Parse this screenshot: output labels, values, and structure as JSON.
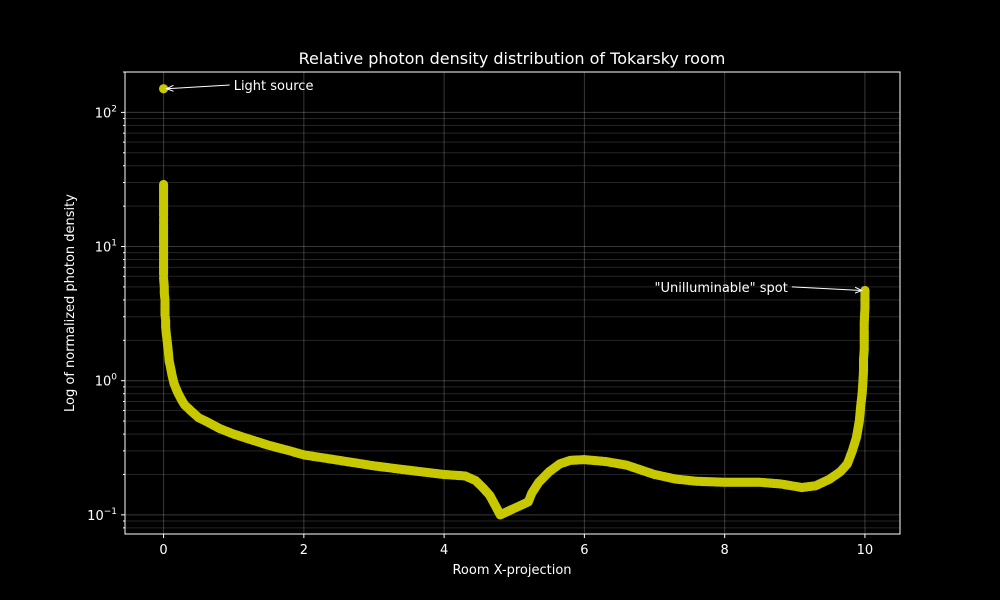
{
  "chart_data": {
    "type": "scatter",
    "title": "Relative photon density distribution of Tokarsky room",
    "xlabel": "Room X-projection",
    "ylabel": "Log of normalized photon density",
    "xlim": [
      -0.55,
      10.5
    ],
    "ylim": [
      0.072,
      200
    ],
    "y_scale": "log",
    "grid": true,
    "x_ticks": [
      0,
      2,
      4,
      6,
      8,
      10
    ],
    "x_tick_labels": [
      "0",
      "2",
      "4",
      "6",
      "8",
      "10"
    ],
    "y_ticks": [
      0.1,
      1,
      10,
      100
    ],
    "y_tick_labels": [
      {
        "base": "10",
        "exp": "−1"
      },
      {
        "base": "10",
        "exp": "0"
      },
      {
        "base": "10",
        "exp": "1"
      },
      {
        "base": "10",
        "exp": "2"
      }
    ],
    "series": [
      {
        "color": "#c8c800",
        "points": [
          [
            0,
            150
          ],
          [
            0,
            29
          ],
          [
            0,
            27
          ],
          [
            0,
            25
          ],
          [
            0,
            19
          ],
          [
            0,
            17
          ],
          [
            0,
            16
          ],
          [
            0,
            14
          ],
          [
            0,
            12.5
          ],
          [
            0,
            9.5
          ],
          [
            0,
            6.2
          ],
          [
            0,
            5.8
          ],
          [
            0.01,
            5.0
          ],
          [
            0.01,
            4.5
          ],
          [
            0.02,
            4.0
          ],
          [
            0.02,
            3.5
          ],
          [
            0.02,
            3.1
          ],
          [
            0.03,
            2.8
          ],
          [
            0.03,
            2.5
          ],
          [
            0.04,
            2.2
          ],
          [
            0.05,
            2.0
          ],
          [
            0.06,
            1.8
          ],
          [
            0.07,
            1.6
          ],
          [
            0.08,
            1.4
          ],
          [
            0.1,
            1.25
          ],
          [
            0.12,
            1.1
          ],
          [
            0.15,
            0.95
          ],
          [
            0.2,
            0.82
          ],
          [
            0.25,
            0.73
          ],
          [
            0.3,
            0.66
          ],
          [
            0.4,
            0.59
          ],
          [
            0.5,
            0.53
          ],
          [
            0.6,
            0.5
          ],
          [
            0.8,
            0.44
          ],
          [
            1.0,
            0.4
          ],
          [
            1.2,
            0.37
          ],
          [
            1.5,
            0.33
          ],
          [
            1.8,
            0.3
          ],
          [
            2.0,
            0.28
          ],
          [
            2.5,
            0.255
          ],
          [
            3.0,
            0.232
          ],
          [
            3.5,
            0.215
          ],
          [
            4.0,
            0.2
          ],
          [
            4.3,
            0.195
          ],
          [
            4.45,
            0.18
          ],
          [
            4.55,
            0.16
          ],
          [
            4.65,
            0.14
          ],
          [
            4.72,
            0.12
          ],
          [
            4.8,
            0.1
          ],
          [
            5.2,
            0.125
          ],
          [
            5.25,
            0.145
          ],
          [
            5.35,
            0.175
          ],
          [
            5.5,
            0.21
          ],
          [
            5.65,
            0.24
          ],
          [
            5.8,
            0.255
          ],
          [
            6.0,
            0.258
          ],
          [
            6.3,
            0.25
          ],
          [
            6.6,
            0.235
          ],
          [
            7.0,
            0.2
          ],
          [
            7.3,
            0.185
          ],
          [
            7.6,
            0.178
          ],
          [
            8.0,
            0.175
          ],
          [
            8.5,
            0.175
          ],
          [
            8.8,
            0.17
          ],
          [
            9.1,
            0.16
          ],
          [
            9.3,
            0.165
          ],
          [
            9.5,
            0.185
          ],
          [
            9.65,
            0.21
          ],
          [
            9.75,
            0.24
          ],
          [
            9.82,
            0.3
          ],
          [
            9.88,
            0.38
          ],
          [
            9.92,
            0.5
          ],
          [
            9.94,
            0.65
          ],
          [
            9.96,
            0.8
          ],
          [
            9.97,
            0.95
          ],
          [
            9.98,
            1.2
          ],
          [
            9.98,
            1.45
          ],
          [
            9.99,
            1.7
          ],
          [
            9.99,
            2.0
          ],
          [
            9.99,
            2.3
          ],
          [
            9.99,
            2.7
          ],
          [
            10.0,
            3.5
          ],
          [
            10.0,
            4.7
          ]
        ]
      }
    ],
    "annotations": [
      {
        "text": "Light source",
        "x": 0,
        "y": 150,
        "text_x": 1.0,
        "text_y": 160
      },
      {
        "text": "\"Unilluminable\" spot",
        "x": 10,
        "y": 4.7,
        "text_x": 7.0,
        "text_y": 5.0
      }
    ]
  }
}
